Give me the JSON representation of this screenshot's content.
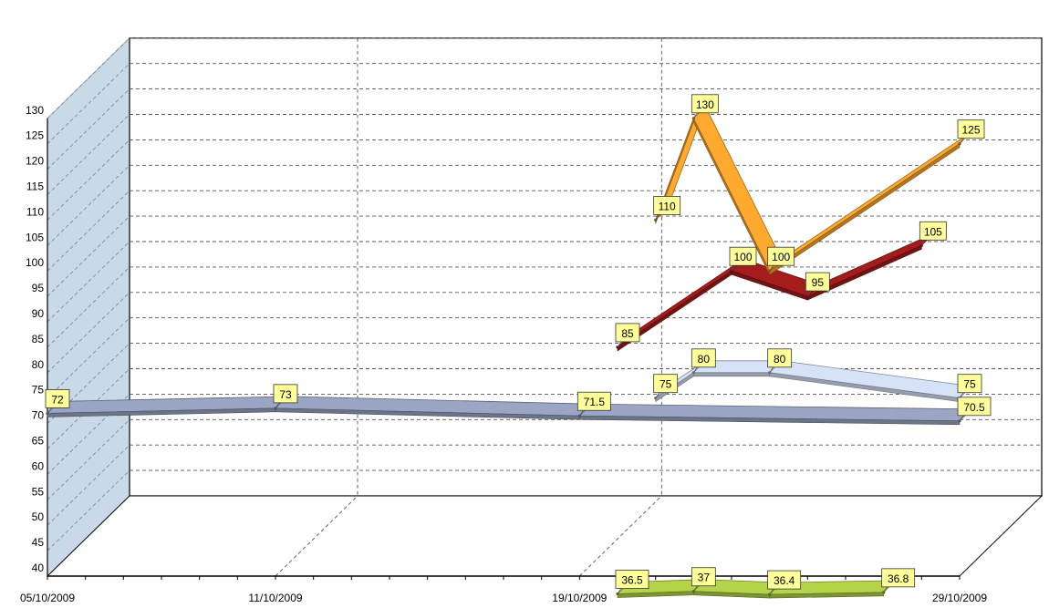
{
  "chart_data": {
    "type": "line",
    "style": "3d-ribbon",
    "x_axis": {
      "type": "date",
      "min": "2009-10-05",
      "max": "2009-10-29",
      "tick_labels": [
        "05/10/2009",
        "11/10/2009",
        "19/10/2009",
        "29/10/2009"
      ],
      "tick_dates": [
        "2009-10-05",
        "2009-10-11",
        "2009-10-19",
        "2009-10-29"
      ]
    },
    "y_axis": {
      "min": 40,
      "max": 130,
      "step": 5,
      "tick_labels": [
        "40",
        "45",
        "50",
        "55",
        "60",
        "65",
        "70",
        "75",
        "80",
        "85",
        "90",
        "95",
        "100",
        "105",
        "110",
        "115",
        "120",
        "125",
        "130"
      ]
    },
    "grid": true,
    "legend": "none",
    "series": [
      {
        "color": "#9AA6C4",
        "points": [
          {
            "x": "2009-10-05",
            "y": 72,
            "label": "72"
          },
          {
            "x": "2009-10-11",
            "y": 73,
            "label": "73"
          },
          {
            "x": "2009-10-19",
            "y": 71.5,
            "label": "71.5"
          },
          {
            "x": "2009-10-29",
            "y": 70.5,
            "label": "70.5"
          }
        ]
      },
      {
        "color": "#D6E2F8",
        "points": [
          {
            "x": "2009-10-21",
            "y": 75,
            "label": "75"
          },
          {
            "x": "2009-10-22",
            "y": 80,
            "label": "80"
          },
          {
            "x": "2009-10-24",
            "y": 80,
            "label": "80"
          },
          {
            "x": "2009-10-29",
            "y": 75,
            "label": "75"
          }
        ]
      },
      {
        "color": "#A51C1C",
        "points": [
          {
            "x": "2009-10-20",
            "y": 85,
            "label": "85"
          },
          {
            "x": "2009-10-23",
            "y": 100,
            "label": "100"
          },
          {
            "x": "2009-10-25",
            "y": 95,
            "label": "95"
          },
          {
            "x": "2009-10-28",
            "y": 105,
            "label": "105"
          }
        ]
      },
      {
        "color": "#FFAA2E",
        "points": [
          {
            "x": "2009-10-21",
            "y": 110,
            "label": "110"
          },
          {
            "x": "2009-10-22",
            "y": 130,
            "label": "130"
          },
          {
            "x": "2009-10-24",
            "y": 100,
            "label": "100"
          },
          {
            "x": "2009-10-29",
            "y": 125,
            "label": "125"
          }
        ]
      },
      {
        "color": "#B4D44A",
        "points": [
          {
            "x": "2009-10-20",
            "y": 36.5,
            "label": "36.5"
          },
          {
            "x": "2009-10-22",
            "y": 37,
            "label": "37"
          },
          {
            "x": "2009-10-24",
            "y": 36.4,
            "label": "36.4"
          },
          {
            "x": "2009-10-27",
            "y": 36.8,
            "label": "36.8"
          }
        ]
      }
    ]
  }
}
